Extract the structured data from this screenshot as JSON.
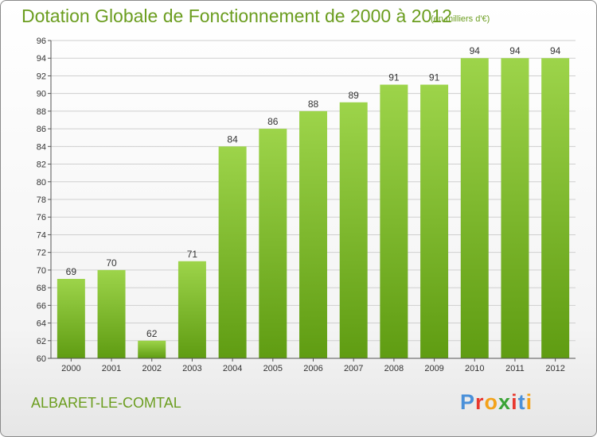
{
  "chart_title": "Dotation Globale de Fonctionnement de 2000 à 2012",
  "chart_unit": "(en milliers d'€)",
  "commune_name": "ALBARET-LE-COMTAL",
  "logo": {
    "text": "Proxiti",
    "letter_colors": [
      "#4a90d9",
      "#e8382e",
      "#f3a21a",
      "#3aa335",
      "#e8382e",
      "#4a90d9",
      "#f3a21a"
    ]
  },
  "colors": {
    "bar_top": "#9dd44a",
    "bar_bottom": "#5f9c12",
    "grid": "#cfcfcf",
    "text_accent": "#6b9d1f"
  },
  "chart_data": {
    "type": "bar",
    "title": "Dotation Globale de Fonctionnement de 2000 à 2012",
    "subtitle": "(en milliers d'€)",
    "categories": [
      "2000",
      "2001",
      "2002",
      "2003",
      "2004",
      "2005",
      "2006",
      "2007",
      "2008",
      "2009",
      "2010",
      "2011",
      "2012"
    ],
    "values": [
      69,
      70,
      62,
      71,
      84,
      86,
      88,
      89,
      91,
      91,
      94,
      94,
      94
    ],
    "xlabel": "",
    "ylabel": "",
    "ylim": [
      60,
      96
    ],
    "yticks": [
      60,
      62,
      64,
      66,
      68,
      70,
      72,
      74,
      76,
      78,
      80,
      82,
      84,
      86,
      88,
      90,
      92,
      94,
      96
    ],
    "grid": true,
    "legend": "none"
  }
}
